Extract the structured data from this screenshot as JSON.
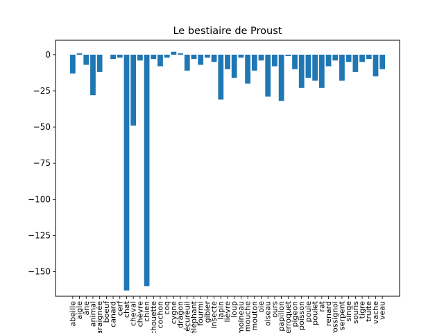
{
  "chart_data": {
    "type": "bar",
    "title": "Le bestiaire de Proust",
    "xlabel": "",
    "ylabel": "",
    "color": "#1f77b4",
    "ylim": [
      -167,
      10
    ],
    "yticks": [
      0,
      -25,
      -50,
      -75,
      -100,
      -125,
      -150
    ],
    "ytick_labels": [
      "0",
      "−25",
      "−50",
      "−75",
      "−100",
      "−125",
      "−150"
    ],
    "grid": false,
    "categories": [
      "abeille",
      "aigle",
      "âne",
      "animal",
      "araignée",
      "boeuf",
      "canard",
      "cerf",
      "chat",
      "cheval",
      "chèvre",
      "chien",
      "chouette",
      "cochon",
      "coq",
      "cygne",
      "dragon",
      "écureuil",
      "éléphant",
      "fourmi",
      "gibier",
      "insecte",
      "lapin",
      "lièvre",
      "loup",
      "moineau",
      "mouche",
      "mouton",
      "oie",
      "oiseau",
      "ours",
      "papillon",
      "perroquet",
      "pigeon",
      "poisson",
      "poule",
      "poulet",
      "rat",
      "renard",
      "rossignol",
      "serpent",
      "singe",
      "souris",
      "tigre",
      "truite",
      "vache",
      "veau"
    ],
    "values": [
      -13,
      1,
      -7,
      -28,
      -12,
      0,
      -3,
      -2,
      -163,
      -49,
      -4,
      -160,
      -3,
      -8,
      -2,
      2,
      1,
      -11,
      -3,
      -7,
      -2,
      -5,
      -31,
      -10,
      -16,
      -2,
      -20,
      -11,
      -4,
      -29,
      -8,
      -32,
      -1,
      -10,
      -23,
      -16,
      -18,
      -23,
      -8,
      -4,
      -18,
      -5,
      -12,
      -5,
      -3,
      -15,
      -10
    ]
  }
}
